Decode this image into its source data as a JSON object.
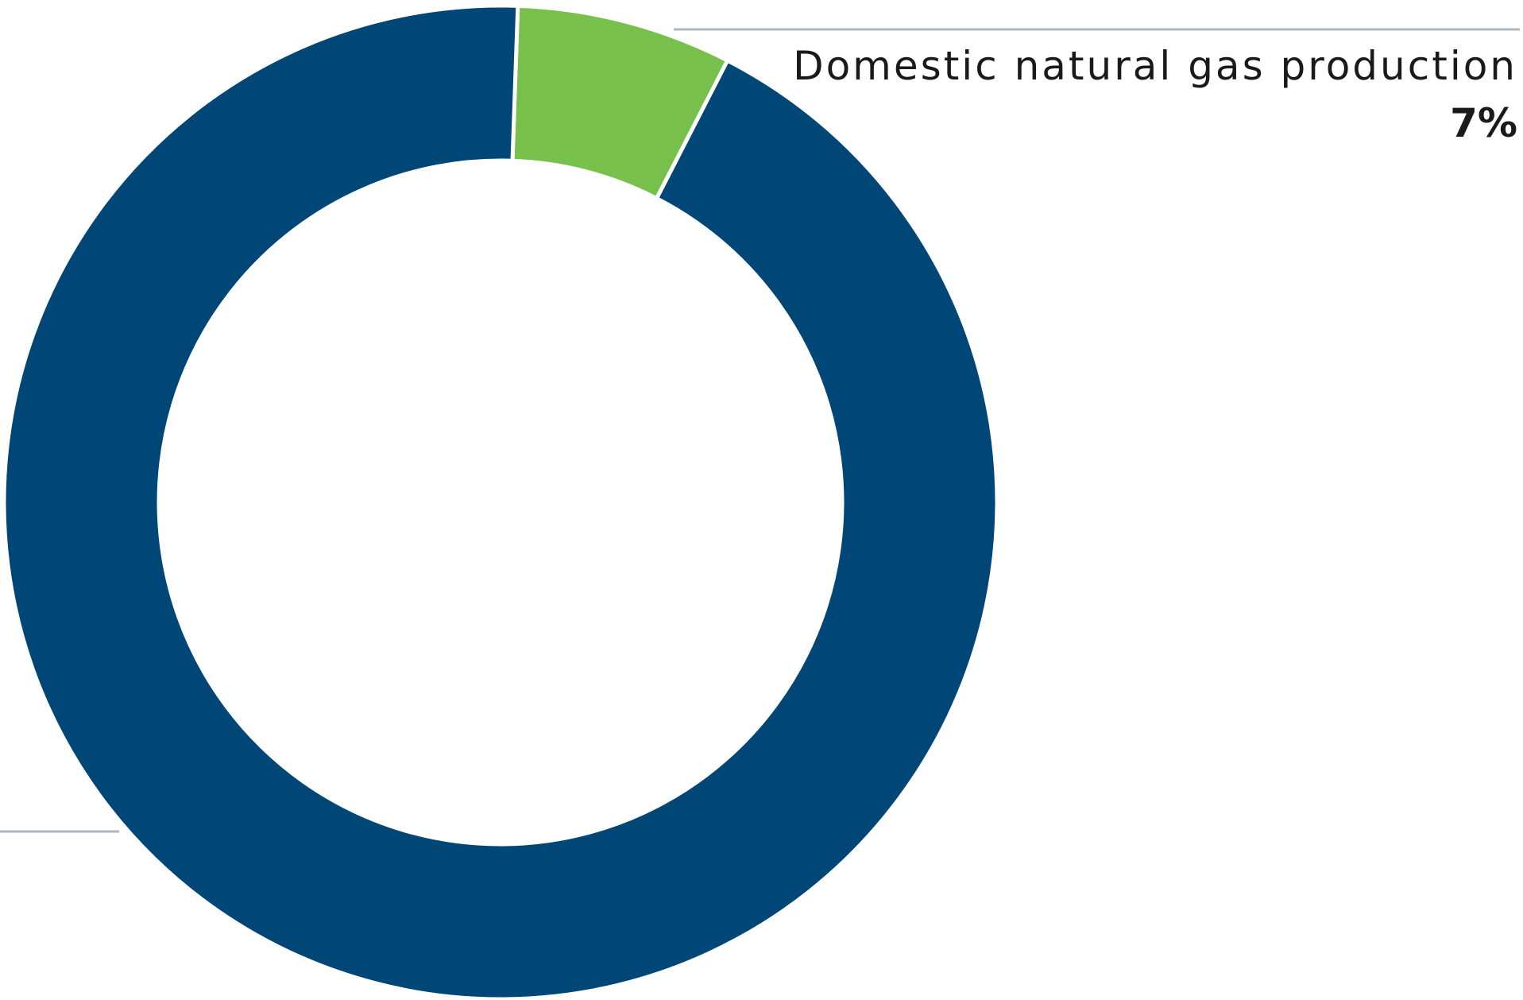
{
  "chart_data": {
    "type": "pie",
    "donut": true,
    "start_angle_deg": 2,
    "slices": [
      {
        "label": "Domestic natural gas production",
        "value_text": "7%",
        "value": 7,
        "color": "#76c04b"
      },
      {
        "label": "",
        "value_text": "",
        "value": 93,
        "color": "#004677"
      }
    ],
    "leader_line_color": "#a9b8c3",
    "separator_color": "#ffffff"
  }
}
